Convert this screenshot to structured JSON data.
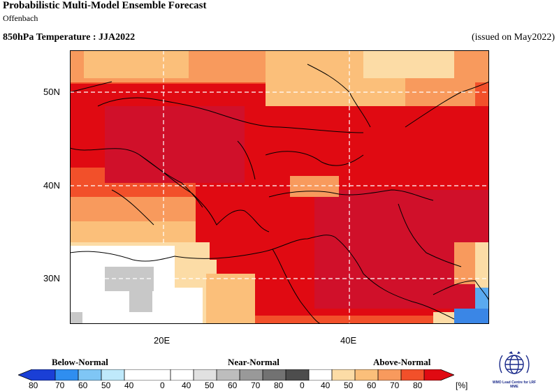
{
  "header": {
    "title": "Probabilistic Multi-Model Ensemble Forecast",
    "subtitle": "Offenbach",
    "variable": "850hPa Temperature : JJA2022",
    "issued": "(issued on May2022)"
  },
  "map": {
    "lat_labels": [
      "50N",
      "40N",
      "30N"
    ],
    "lon_labels": [
      "20E",
      "40E"
    ],
    "lon_range": [
      10,
      55
    ],
    "lat_range": [
      25,
      55
    ],
    "grid": "dashed white"
  },
  "legend": {
    "categories": [
      "Below-Normal",
      "Near-Normal",
      "Above-Normal"
    ],
    "unit": "[%]",
    "labels": [
      "80",
      "70",
      "60",
      "50",
      "40",
      "0",
      "40",
      "50",
      "60",
      "70",
      "80",
      "0",
      "40",
      "50",
      "60",
      "70",
      "80"
    ],
    "colors": {
      "below": [
        "#1a3fd6",
        "#2f8ef0",
        "#7fc6f5",
        "#bfe9fb"
      ],
      "near": [
        "#e1e1e1",
        "#bdbdbd",
        "#999999",
        "#727272",
        "#4d4d4d"
      ],
      "above": [
        "#fcdca6",
        "#fbbf7a",
        "#f89a5d",
        "#f2502a",
        "#e00a12"
      ]
    }
  },
  "logo": {
    "text": "WMO Lead Centre for LRF MME"
  }
}
